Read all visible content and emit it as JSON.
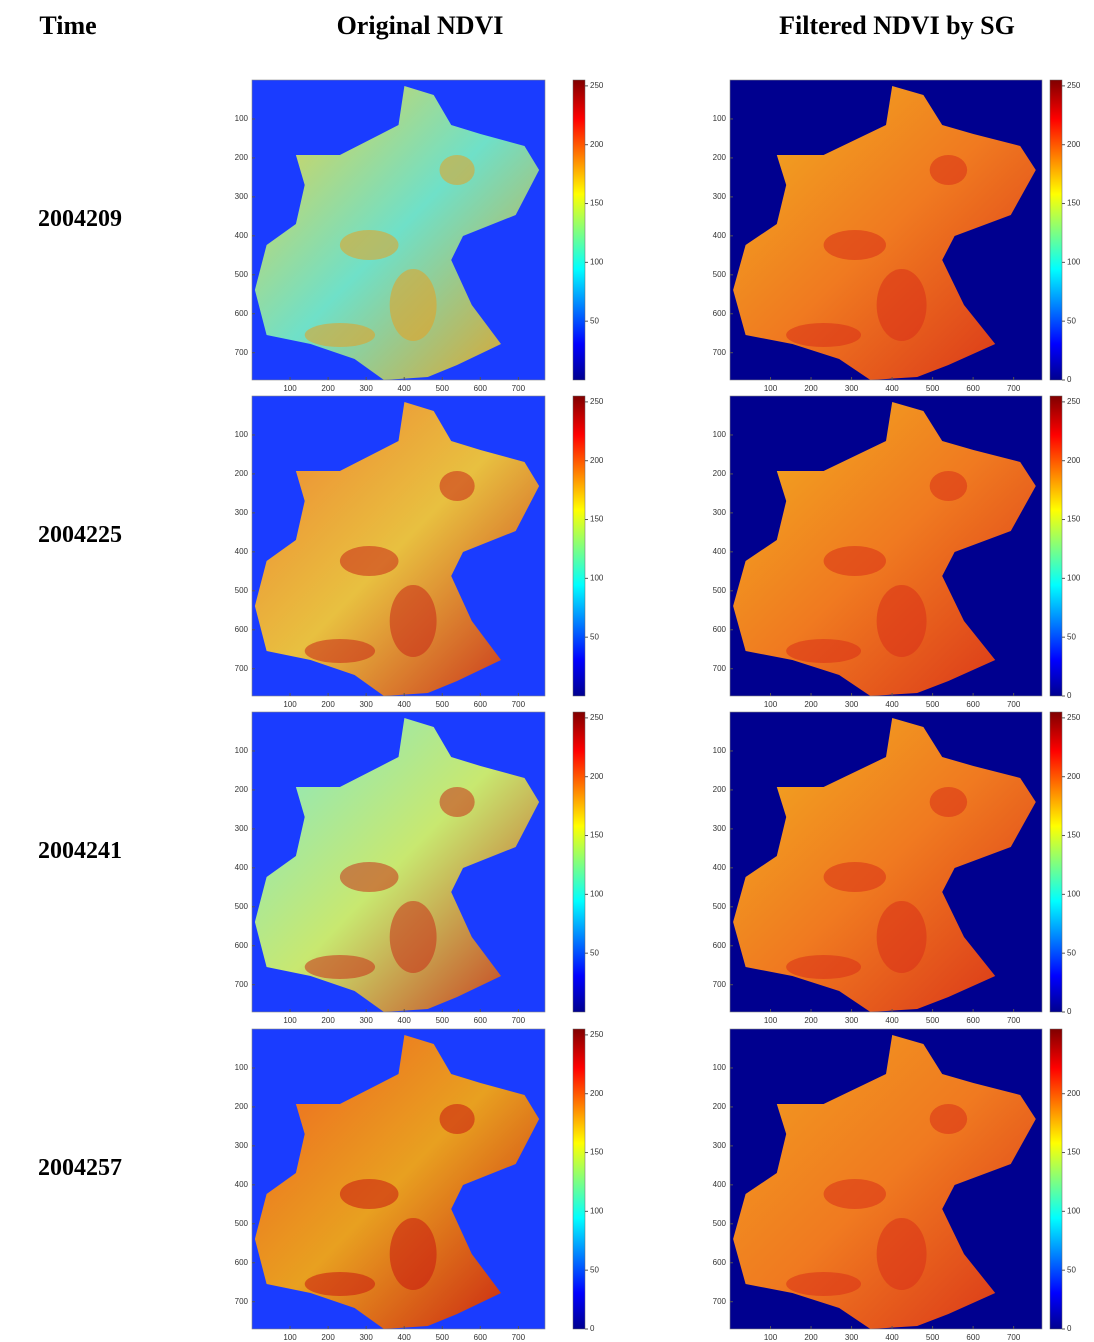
{
  "headers": [
    "Time",
    "Original NDVI",
    "Filtered NDVI by SG"
  ],
  "axes": {
    "xticks": [
      100,
      200,
      300,
      400,
      500,
      600,
      700
    ],
    "yticks": [
      100,
      200,
      300,
      400,
      500,
      600,
      700
    ]
  },
  "rows": [
    {
      "time": "2004209",
      "original_colorbar_ticks": [
        50,
        100,
        150,
        200,
        250
      ],
      "filtered_colorbar_ticks": [
        0,
        50,
        100,
        150,
        200,
        250
      ]
    },
    {
      "time": "2004225",
      "original_colorbar_ticks": [
        50,
        100,
        150,
        200,
        250
      ],
      "filtered_colorbar_ticks": [
        0,
        50,
        100,
        150,
        200,
        250
      ]
    },
    {
      "time": "2004241",
      "original_colorbar_ticks": [
        50,
        100,
        150,
        200,
        250
      ],
      "filtered_colorbar_ticks": [
        0,
        50,
        100,
        150,
        200,
        250
      ]
    },
    {
      "time": "2004257",
      "original_colorbar_ticks": [
        0,
        50,
        100,
        150,
        200,
        250
      ],
      "filtered_colorbar_ticks": [
        0,
        50,
        100,
        150,
        200
      ]
    }
  ]
}
